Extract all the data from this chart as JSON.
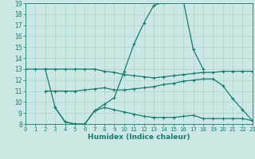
{
  "xlabel": "Humidex (Indice chaleur)",
  "bg_color": "#cce8e4",
  "grid_color": "#aad4cc",
  "line_color": "#1a7a6e",
  "xlim": [
    0,
    23
  ],
  "ylim": [
    8,
    19
  ],
  "xticks": [
    0,
    1,
    2,
    3,
    4,
    5,
    6,
    7,
    8,
    9,
    10,
    11,
    12,
    13,
    14,
    15,
    16,
    17,
    18,
    19,
    20,
    21,
    22,
    23
  ],
  "yticks": [
    8,
    9,
    10,
    11,
    12,
    13,
    14,
    15,
    16,
    17,
    18,
    19
  ],
  "curve_main_x": [
    2,
    3,
    4,
    5,
    6,
    7,
    8,
    9,
    10,
    11,
    12,
    13,
    14,
    15,
    16,
    17,
    18
  ],
  "curve_main_y": [
    13,
    9.5,
    8.2,
    8.0,
    8.0,
    9.2,
    9.8,
    10.4,
    12.8,
    15.3,
    17.2,
    18.8,
    19.1,
    19.2,
    19.2,
    14.8,
    13.0
  ],
  "curve_top_x": [
    0,
    1,
    2,
    3,
    4,
    5,
    6,
    7,
    8,
    9,
    10,
    11,
    12,
    13,
    14,
    15,
    16,
    17,
    18,
    19,
    20,
    21,
    22,
    23
  ],
  "curve_top_y": [
    13,
    13,
    13,
    13,
    13,
    13,
    13,
    13,
    12.8,
    12.7,
    12.5,
    12.4,
    12.3,
    12.2,
    12.3,
    12.4,
    12.5,
    12.6,
    12.7,
    12.7,
    12.8,
    12.8,
    12.8,
    12.8
  ],
  "curve_mid_x": [
    2,
    3,
    4,
    5,
    6,
    7,
    8,
    9,
    10,
    11,
    12,
    13,
    14,
    15,
    16,
    17,
    18,
    19,
    20,
    21,
    22,
    23
  ],
  "curve_mid_y": [
    11,
    11,
    11,
    11,
    11.1,
    11.2,
    11.3,
    11.1,
    11.1,
    11.2,
    11.3,
    11.4,
    11.6,
    11.7,
    11.9,
    12.0,
    12.1,
    12.1,
    11.5,
    10.3,
    9.3,
    8.3
  ],
  "curve_bot_x": [
    3,
    4,
    5,
    6,
    7,
    8,
    9,
    10,
    11,
    12,
    13,
    14,
    15,
    16,
    17,
    18,
    19,
    20,
    21,
    22,
    23
  ],
  "curve_bot_y": [
    9.5,
    8.2,
    8.0,
    8.0,
    9.2,
    9.5,
    9.3,
    9.1,
    8.9,
    8.7,
    8.6,
    8.6,
    8.6,
    8.7,
    8.8,
    8.5,
    8.5,
    8.5,
    8.5,
    8.5,
    8.3
  ]
}
